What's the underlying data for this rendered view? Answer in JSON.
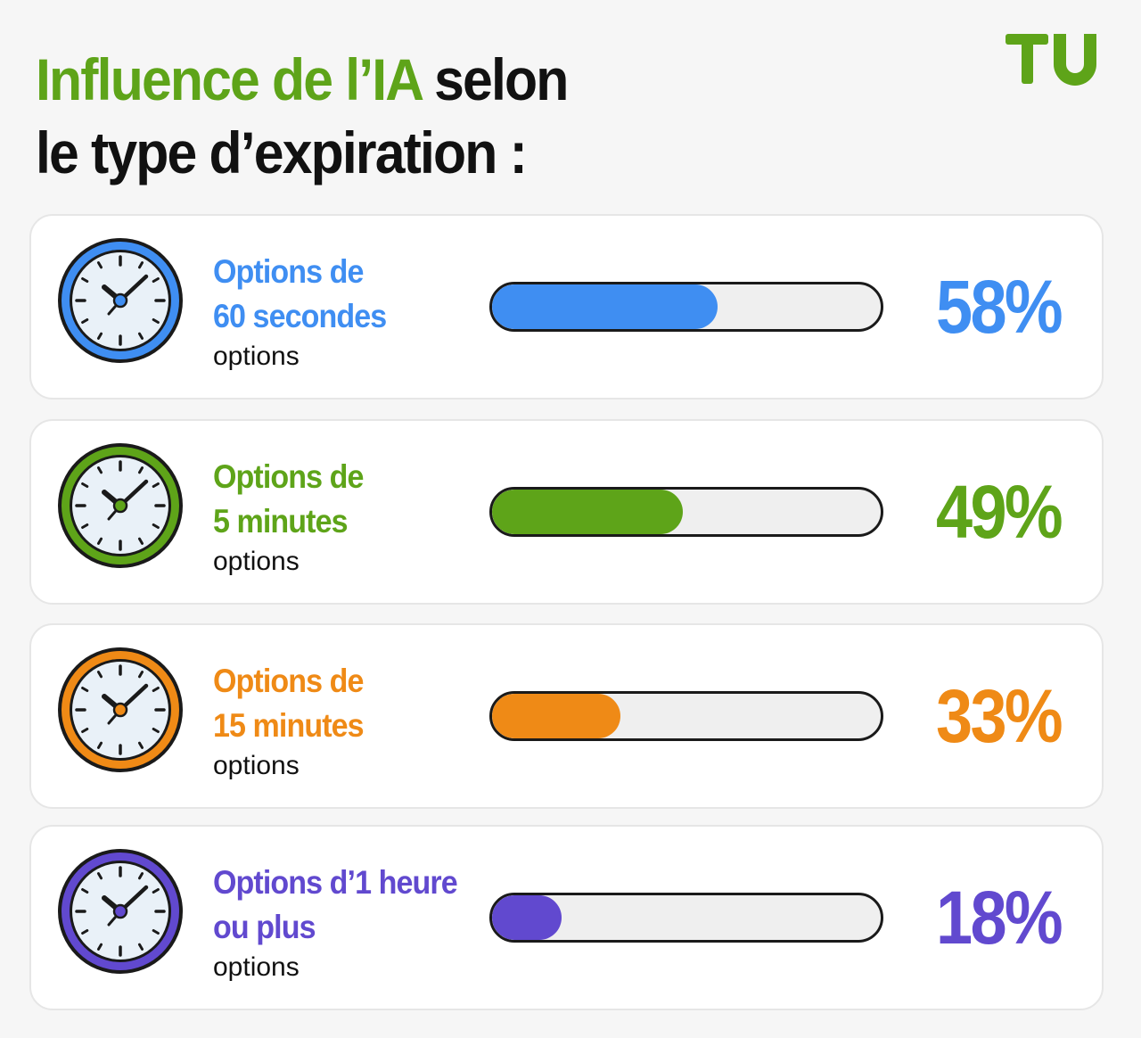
{
  "header": {
    "title_accent": "Influence de l’IA",
    "title_rest": "selon",
    "title_line2": "le type d’expiration :",
    "title_accent_color": "#5ea419"
  },
  "logo": {
    "icon": "tu-logo-icon",
    "color": "#5ea419"
  },
  "chart_data": {
    "type": "bar",
    "title": "Influence de l’IA selon le type d’expiration :",
    "xlabel": "",
    "ylabel": "",
    "ylim": [
      0,
      100
    ],
    "categories": [
      "Options de 60 secondes",
      "Options de 5 minutes",
      "Options de 15 minutes",
      "Options d’1 heure ou plus"
    ],
    "values": [
      58,
      49,
      33,
      18
    ],
    "value_labels": [
      "58%",
      "49%",
      "33%",
      "18%"
    ],
    "colors": [
      "#3f8ef2",
      "#5ea419",
      "#ef8a16",
      "#6149cf"
    ],
    "sublabel": "options"
  },
  "rows": [
    {
      "line1": "Options de",
      "line2": "60 secondes",
      "sub": "options",
      "pct": "58%",
      "value": 58,
      "color": "#3f8ef2",
      "icon": "clock-icon"
    },
    {
      "line1": "Options de",
      "line2": "5 minutes",
      "sub": "options",
      "pct": "49%",
      "value": 49,
      "color": "#5ea419",
      "icon": "clock-icon"
    },
    {
      "line1": "Options de",
      "line2": "15 minutes",
      "sub": "options",
      "pct": "33%",
      "value": 33,
      "color": "#ef8a16",
      "icon": "clock-icon"
    },
    {
      "line1": "Options d’1 heure",
      "line2": "ou plus",
      "sub": "options",
      "pct": "18%",
      "value": 18,
      "color": "#6149cf",
      "icon": "clock-icon"
    }
  ]
}
